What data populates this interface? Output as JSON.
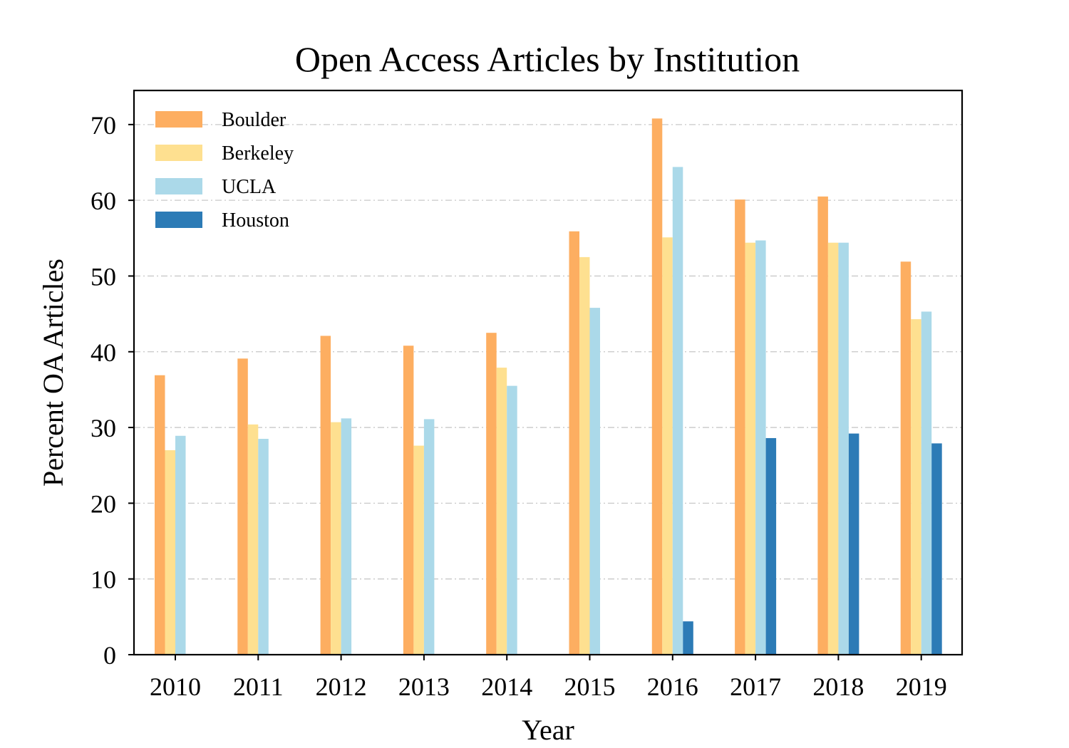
{
  "chart_data": {
    "type": "bar",
    "title": "Open Access Articles by Institution",
    "xlabel": "Year",
    "ylabel": "Percent OA Articles",
    "categories": [
      "2010",
      "2011",
      "2012",
      "2013",
      "2014",
      "2015",
      "2016",
      "2017",
      "2018",
      "2019"
    ],
    "ylim": [
      0,
      74.5
    ],
    "yticks": [
      0,
      10,
      20,
      30,
      40,
      50,
      60,
      70
    ],
    "grid": true,
    "legend_position": "top-left",
    "series": [
      {
        "name": "Boulder",
        "color": "#fdae61",
        "values": [
          36.9,
          39.1,
          42.1,
          40.8,
          42.5,
          55.9,
          70.8,
          60.1,
          60.5,
          51.9
        ]
      },
      {
        "name": "Berkeley",
        "color": "#fee090",
        "values": [
          27.0,
          30.4,
          30.7,
          27.6,
          37.9,
          52.5,
          55.1,
          54.4,
          54.4,
          44.3
        ]
      },
      {
        "name": "UCLA",
        "color": "#abd9e9",
        "values": [
          28.9,
          28.5,
          31.2,
          31.1,
          35.5,
          45.8,
          64.4,
          54.7,
          54.4,
          45.3
        ]
      },
      {
        "name": "Houston",
        "color": "#2c7bb6",
        "values": [
          0,
          0,
          0,
          0,
          0,
          0,
          4.4,
          28.6,
          29.2,
          27.9
        ]
      }
    ]
  }
}
